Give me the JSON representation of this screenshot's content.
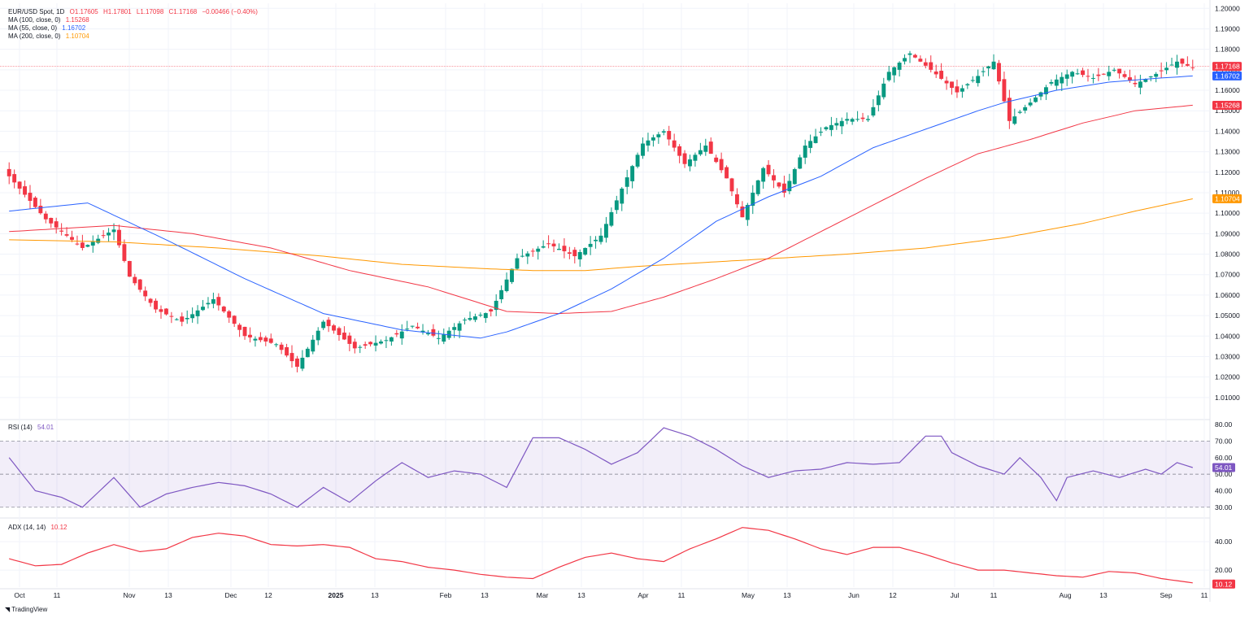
{
  "header": {
    "symbol": "EUR/USD Spot, 1D",
    "open": "O1.17605",
    "high": "H1.17801",
    "low": "L1.17098",
    "close": "C1.17168",
    "change": "−0.00466 (−0.40%)",
    "up_color": "#089981",
    "down_color": "#f23645"
  },
  "ma_legend": [
    {
      "label": "MA (100, close, 0)",
      "value": "1.15268",
      "color": "#f23645"
    },
    {
      "label": "MA (55, close, 0)",
      "value": "1.16702",
      "color": "#2962ff"
    },
    {
      "label": "MA (200, close, 0)",
      "value": "1.10704",
      "color": "#ff9800"
    }
  ],
  "rsi_legend": {
    "label": "RSI (14)",
    "value": "54.01",
    "color": "#7e57c2"
  },
  "adx_legend": {
    "label": "ADX (14, 14)",
    "value": "10.12",
    "color": "#f23645"
  },
  "branding": {
    "name": "TradingView"
  },
  "chart_data": [
    {
      "type": "candlestick",
      "title": "EUR/USD Spot, 1D",
      "ylim": [
        1.0,
        1.2025
      ],
      "price_ticks": [
        "1.20000",
        "1.19000",
        "1.18000",
        "1.17000",
        "1.16000",
        "1.15000",
        "1.14000",
        "1.13000",
        "1.12000",
        "1.11000",
        "1.10000",
        "1.09000",
        "1.08000",
        "1.07000",
        "1.06000",
        "1.05000",
        "1.04000",
        "1.03000",
        "1.02000",
        "1.01000"
      ],
      "last_price": 1.17168,
      "price_badges": [
        {
          "value": 1.17168,
          "label": "1.17168",
          "color": "#f23645"
        },
        {
          "value": 1.16702,
          "label": "1.16702",
          "color": "#2962ff"
        },
        {
          "value": 1.15268,
          "label": "1.15268",
          "color": "#f23645"
        },
        {
          "value": 1.10704,
          "label": "1.10704",
          "color": "#ff9800"
        }
      ],
      "x_labels": [
        "Oct",
        "11",
        "Nov",
        "13",
        "Dec",
        "12",
        "2025",
        "13",
        "Feb",
        "13",
        "Mar",
        "13",
        "Apr",
        "11",
        "May",
        "13",
        "Jun",
        "12",
        "Jul",
        "11",
        "Aug",
        "13",
        "Sep",
        "11"
      ],
      "close_path": [
        [
          0,
          1.118
        ],
        [
          7,
          1.097
        ],
        [
          14,
          1.083
        ],
        [
          20,
          1.092
        ],
        [
          23,
          1.069
        ],
        [
          28,
          1.053
        ],
        [
          33,
          1.047
        ],
        [
          39,
          1.058
        ],
        [
          45,
          1.04
        ],
        [
          51,
          1.036
        ],
        [
          55,
          1.025
        ],
        [
          60,
          1.047
        ],
        [
          66,
          1.034
        ],
        [
          72,
          1.038
        ],
        [
          77,
          1.045
        ],
        [
          82,
          1.039
        ],
        [
          87,
          1.048
        ],
        [
          92,
          1.052
        ],
        [
          97,
          1.078
        ],
        [
          103,
          1.085
        ],
        [
          108,
          1.079
        ],
        [
          113,
          1.089
        ],
        [
          117,
          1.112
        ],
        [
          121,
          1.134
        ],
        [
          125,
          1.14
        ],
        [
          129,
          1.124
        ],
        [
          133,
          1.133
        ],
        [
          137,
          1.117
        ],
        [
          140,
          1.098
        ],
        [
          144,
          1.122
        ],
        [
          148,
          1.11
        ],
        [
          152,
          1.133
        ],
        [
          156,
          1.142
        ],
        [
          160,
          1.146
        ],
        [
          164,
          1.146
        ],
        [
          168,
          1.169
        ],
        [
          172,
          1.178
        ],
        [
          176,
          1.17
        ],
        [
          181,
          1.159
        ],
        [
          185,
          1.167
        ],
        [
          188,
          1.174
        ],
        [
          191,
          1.145
        ],
        [
          195,
          1.154
        ],
        [
          199,
          1.164
        ],
        [
          203,
          1.169
        ],
        [
          207,
          1.166
        ],
        [
          211,
          1.17
        ],
        [
          215,
          1.163
        ],
        [
          219,
          1.168
        ],
        [
          223,
          1.174
        ],
        [
          226,
          1.171
        ]
      ],
      "ma55_path": [
        [
          0,
          1.101
        ],
        [
          15,
          1.105
        ],
        [
          30,
          1.087
        ],
        [
          45,
          1.068
        ],
        [
          60,
          1.051
        ],
        [
          75,
          1.043
        ],
        [
          90,
          1.039
        ],
        [
          95,
          1.042
        ],
        [
          105,
          1.051
        ],
        [
          115,
          1.063
        ],
        [
          125,
          1.078
        ],
        [
          135,
          1.096
        ],
        [
          145,
          1.108
        ],
        [
          155,
          1.118
        ],
        [
          165,
          1.132
        ],
        [
          175,
          1.141
        ],
        [
          185,
          1.15
        ],
        [
          190,
          1.154
        ],
        [
          200,
          1.16
        ],
        [
          210,
          1.164
        ],
        [
          220,
          1.166
        ],
        [
          226,
          1.167
        ]
      ],
      "ma100_path": [
        [
          0,
          1.091
        ],
        [
          20,
          1.094
        ],
        [
          35,
          1.09
        ],
        [
          50,
          1.083
        ],
        [
          65,
          1.072
        ],
        [
          80,
          1.064
        ],
        [
          95,
          1.052
        ],
        [
          105,
          1.051
        ],
        [
          115,
          1.052
        ],
        [
          125,
          1.059
        ],
        [
          135,
          1.068
        ],
        [
          145,
          1.078
        ],
        [
          155,
          1.091
        ],
        [
          165,
          1.104
        ],
        [
          175,
          1.117
        ],
        [
          185,
          1.129
        ],
        [
          195,
          1.136
        ],
        [
          205,
          1.144
        ],
        [
          215,
          1.15
        ],
        [
          226,
          1.1527
        ]
      ],
      "ma200_path": [
        [
          0,
          1.087
        ],
        [
          20,
          1.086
        ],
        [
          40,
          1.083
        ],
        [
          60,
          1.079
        ],
        [
          75,
          1.075
        ],
        [
          90,
          1.073
        ],
        [
          100,
          1.072
        ],
        [
          110,
          1.072
        ],
        [
          120,
          1.074
        ],
        [
          140,
          1.077
        ],
        [
          160,
          1.08
        ],
        [
          175,
          1.083
        ],
        [
          190,
          1.088
        ],
        [
          205,
          1.095
        ],
        [
          215,
          1.101
        ],
        [
          226,
          1.107
        ]
      ]
    },
    {
      "type": "line",
      "title": "RSI (14)",
      "ylim": [
        25,
        82
      ],
      "y_ticks": [
        "80.00",
        "70.00",
        "60.00",
        "50.00",
        "40.00",
        "30.00"
      ],
      "band": [
        30,
        70
      ],
      "midline": 50,
      "last_value": 54.01,
      "path": [
        [
          0,
          60
        ],
        [
          5,
          40
        ],
        [
          10,
          36
        ],
        [
          14,
          30
        ],
        [
          20,
          48
        ],
        [
          25,
          30
        ],
        [
          30,
          38
        ],
        [
          35,
          42
        ],
        [
          40,
          45
        ],
        [
          45,
          43
        ],
        [
          50,
          38
        ],
        [
          55,
          30
        ],
        [
          60,
          42
        ],
        [
          65,
          33
        ],
        [
          70,
          46
        ],
        [
          75,
          57
        ],
        [
          80,
          48
        ],
        [
          85,
          52
        ],
        [
          90,
          50
        ],
        [
          95,
          42
        ],
        [
          100,
          72
        ],
        [
          105,
          72
        ],
        [
          110,
          65
        ],
        [
          115,
          56
        ],
        [
          120,
          63
        ],
        [
          125,
          78
        ],
        [
          130,
          73
        ],
        [
          135,
          65
        ],
        [
          140,
          55
        ],
        [
          145,
          48
        ],
        [
          150,
          52
        ],
        [
          155,
          53
        ],
        [
          160,
          57
        ],
        [
          165,
          56
        ],
        [
          170,
          57
        ],
        [
          175,
          73
        ],
        [
          178,
          73
        ],
        [
          180,
          63
        ],
        [
          185,
          55
        ],
        [
          190,
          50
        ],
        [
          193,
          60
        ],
        [
          197,
          48
        ],
        [
          200,
          34
        ],
        [
          202,
          48
        ],
        [
          207,
          52
        ],
        [
          212,
          48
        ],
        [
          217,
          53
        ],
        [
          220,
          50
        ],
        [
          223,
          57
        ],
        [
          226,
          54
        ]
      ]
    },
    {
      "type": "line",
      "title": "ADX (14, 14)",
      "ylim": [
        8,
        55
      ],
      "y_ticks": [
        "40.00",
        "20.00"
      ],
      "last_value": 10.12,
      "path": [
        [
          0,
          28
        ],
        [
          5,
          23
        ],
        [
          10,
          24
        ],
        [
          15,
          32
        ],
        [
          20,
          38
        ],
        [
          25,
          33
        ],
        [
          30,
          35
        ],
        [
          35,
          43
        ],
        [
          40,
          46
        ],
        [
          45,
          44
        ],
        [
          50,
          38
        ],
        [
          55,
          37
        ],
        [
          60,
          38
        ],
        [
          65,
          36
        ],
        [
          70,
          28
        ],
        [
          75,
          26
        ],
        [
          80,
          22
        ],
        [
          85,
          20
        ],
        [
          90,
          17
        ],
        [
          95,
          15
        ],
        [
          100,
          14
        ],
        [
          105,
          22
        ],
        [
          110,
          29
        ],
        [
          115,
          32
        ],
        [
          120,
          28
        ],
        [
          125,
          26
        ],
        [
          130,
          35
        ],
        [
          135,
          42
        ],
        [
          140,
          50
        ],
        [
          145,
          48
        ],
        [
          150,
          42
        ],
        [
          155,
          35
        ],
        [
          160,
          31
        ],
        [
          165,
          36
        ],
        [
          170,
          36
        ],
        [
          175,
          31
        ],
        [
          180,
          25
        ],
        [
          185,
          20
        ],
        [
          190,
          20
        ],
        [
          195,
          18
        ],
        [
          200,
          16
        ],
        [
          205,
          15
        ],
        [
          210,
          19
        ],
        [
          215,
          18
        ],
        [
          220,
          14
        ],
        [
          226,
          11
        ]
      ]
    }
  ]
}
